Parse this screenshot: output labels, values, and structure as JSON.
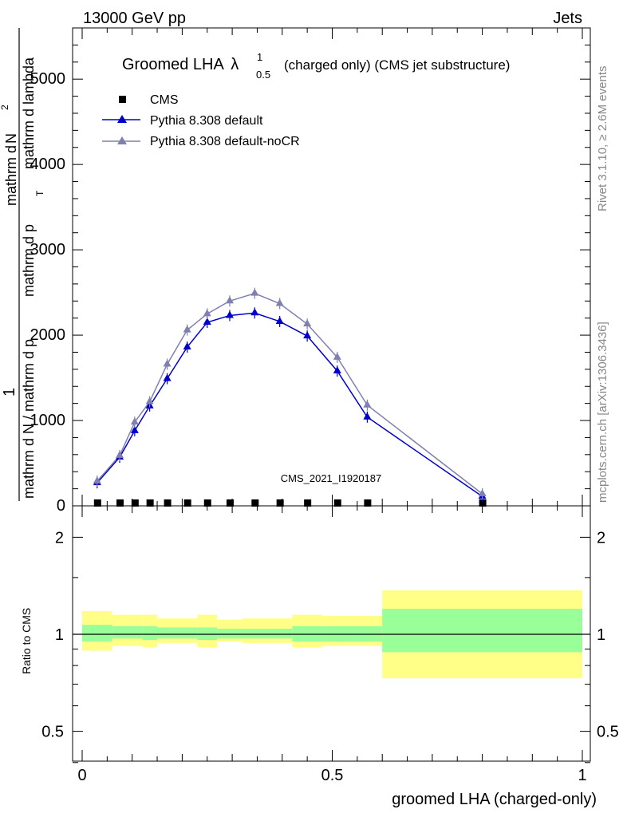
{
  "header": {
    "left": "13000 GeV pp",
    "right": "Jets"
  },
  "side_labels": {
    "rivet": "Rivet 3.1.10, ≥ 2.6M events",
    "mcplots": "mcplots.cern.ch [arXiv:1306.3436]"
  },
  "chart_data": {
    "type": "line",
    "title_main": "Groomed LHA",
    "title_symbol": "λ",
    "title_sup": "1",
    "title_sub": "0.5",
    "title_suffix": "(charged only) (CMS jet substructure)",
    "watermark": "CMS_2021_I1920187",
    "xlabel": "groomed LHA (charged-only)",
    "ylabel_frac_num": "1",
    "ylabel_line1": "mathrm d N / mathrm d p",
    "ylabel_line2": "mathrm d p",
    "ylabel_line3": "mathrm d lambda",
    "ylabel_sub": "T",
    "ylabel_numerator": "mathrm d",
    "ylabel_numerator2": "N",
    "ylabel_sup": "2",
    "ratio_ylabel": "Ratio to CMS",
    "xlim": [
      0,
      1
    ],
    "ylim": [
      0,
      5600
    ],
    "x_ticks": [
      "0",
      "0.5",
      "1"
    ],
    "y_ticks": [
      "0",
      "1000",
      "2000",
      "3000",
      "4000",
      "5000"
    ],
    "ratio_ylim": [
      0.35,
      2.3
    ],
    "ratio_ticks_left": [
      "0.5",
      "1",
      "2"
    ],
    "ratio_ticks_right": [
      "0.5",
      "1",
      "2"
    ],
    "legend": [
      "CMS",
      "Pythia 8.308 default",
      "Pythia 8.308 default-noCR"
    ],
    "series": [
      {
        "name": "CMS",
        "color": "#000000",
        "x": [
          0.03,
          0.075,
          0.105,
          0.135,
          0.17,
          0.21,
          0.25,
          0.295,
          0.345,
          0.395,
          0.45,
          0.51,
          0.57,
          0.8
        ],
        "y": [
          10,
          10,
          10,
          10,
          10,
          10,
          10,
          10,
          10,
          10,
          10,
          10,
          10,
          10
        ]
      },
      {
        "name": "Pythia 8.308 default",
        "color": "#0000cc",
        "x": [
          0.03,
          0.075,
          0.105,
          0.135,
          0.17,
          0.21,
          0.25,
          0.295,
          0.345,
          0.395,
          0.45,
          0.51,
          0.57,
          0.8
        ],
        "y": [
          270,
          570,
          880,
          1170,
          1490,
          1860,
          2150,
          2230,
          2260,
          2160,
          1990,
          1580,
          1040,
          110
        ]
      },
      {
        "name": "Pythia 8.308 default-noCR",
        "color": "#8080b0",
        "x": [
          0.03,
          0.075,
          0.105,
          0.135,
          0.17,
          0.21,
          0.25,
          0.295,
          0.345,
          0.395,
          0.45,
          0.51,
          0.57,
          0.8
        ],
        "y": [
          290,
          590,
          980,
          1220,
          1660,
          2060,
          2250,
          2400,
          2490,
          2370,
          2130,
          1740,
          1180,
          140
        ]
      }
    ],
    "ratio_bands": [
      {
        "x0": 0.0,
        "x1": 0.06,
        "yellow": [
          0.89,
          1.18
        ],
        "green": [
          0.95,
          1.07
        ]
      },
      {
        "x0": 0.06,
        "x1": 0.12,
        "yellow": [
          0.92,
          1.15
        ],
        "green": [
          0.97,
          1.06
        ]
      },
      {
        "x0": 0.12,
        "x1": 0.15,
        "yellow": [
          0.91,
          1.15
        ],
        "green": [
          0.96,
          1.06
        ]
      },
      {
        "x0": 0.15,
        "x1": 0.23,
        "yellow": [
          0.94,
          1.12
        ],
        "green": [
          0.97,
          1.05
        ]
      },
      {
        "x0": 0.23,
        "x1": 0.27,
        "yellow": [
          0.91,
          1.15
        ],
        "green": [
          0.96,
          1.05
        ]
      },
      {
        "x0": 0.27,
        "x1": 0.32,
        "yellow": [
          0.95,
          1.11
        ],
        "green": [
          0.97,
          1.04
        ]
      },
      {
        "x0": 0.32,
        "x1": 0.42,
        "yellow": [
          0.94,
          1.12
        ],
        "green": [
          0.97,
          1.04
        ]
      },
      {
        "x0": 0.42,
        "x1": 0.48,
        "yellow": [
          0.91,
          1.15
        ],
        "green": [
          0.95,
          1.06
        ]
      },
      {
        "x0": 0.48,
        "x1": 0.54,
        "yellow": [
          0.92,
          1.14
        ],
        "green": [
          0.95,
          1.06
        ]
      },
      {
        "x0": 0.54,
        "x1": 0.6,
        "yellow": [
          0.92,
          1.14
        ],
        "green": [
          0.95,
          1.06
        ]
      },
      {
        "x0": 0.6,
        "x1": 1.0,
        "yellow": [
          0.73,
          1.37
        ],
        "green": [
          0.88,
          1.2
        ]
      }
    ]
  }
}
